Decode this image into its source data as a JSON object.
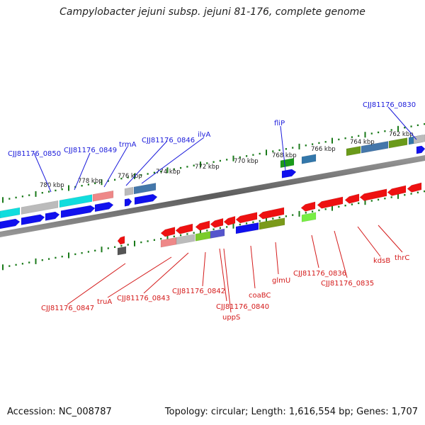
{
  "title": "Campylobacter jejuni subsp. jejuni 81-176, complete genome",
  "accession": "Accession: NC_008787",
  "stats": "Topology: circular; Length: 1,616,554 bp; Genes: 1,707",
  "colors": {
    "backbone": "#7a7a7a",
    "tick": "#1a7a1a",
    "forward_label": "#1a1adb",
    "reverse_label": "#d41a1a",
    "cds": "#ee1111",
    "cds_forward": "#1010ee"
  },
  "kbp_ticks": [
    "780 kbp",
    "778 kbp",
    "776 kbp",
    "774 kbp",
    "772 kbp",
    "770 kbp",
    "768 kbp",
    "766 kbp",
    "764 kbp",
    "762 kbp"
  ],
  "forward_labels": [
    "CJJ81176_0850",
    "CJJ81176_0849",
    "trmA",
    "CJJ81176_0846",
    "ilvA",
    "fliP",
    "CJJ81176_0830"
  ],
  "reverse_labels": [
    "CJJ81176_0847",
    "truA",
    "CJJ81176_0843",
    "CJJ81176_0842",
    "CJJ81176_0840",
    "uppS",
    "coaBC",
    "glmU",
    "CJJ81176_0836",
    "CJJ81176_0835",
    "kdsB",
    "thrC"
  ]
}
